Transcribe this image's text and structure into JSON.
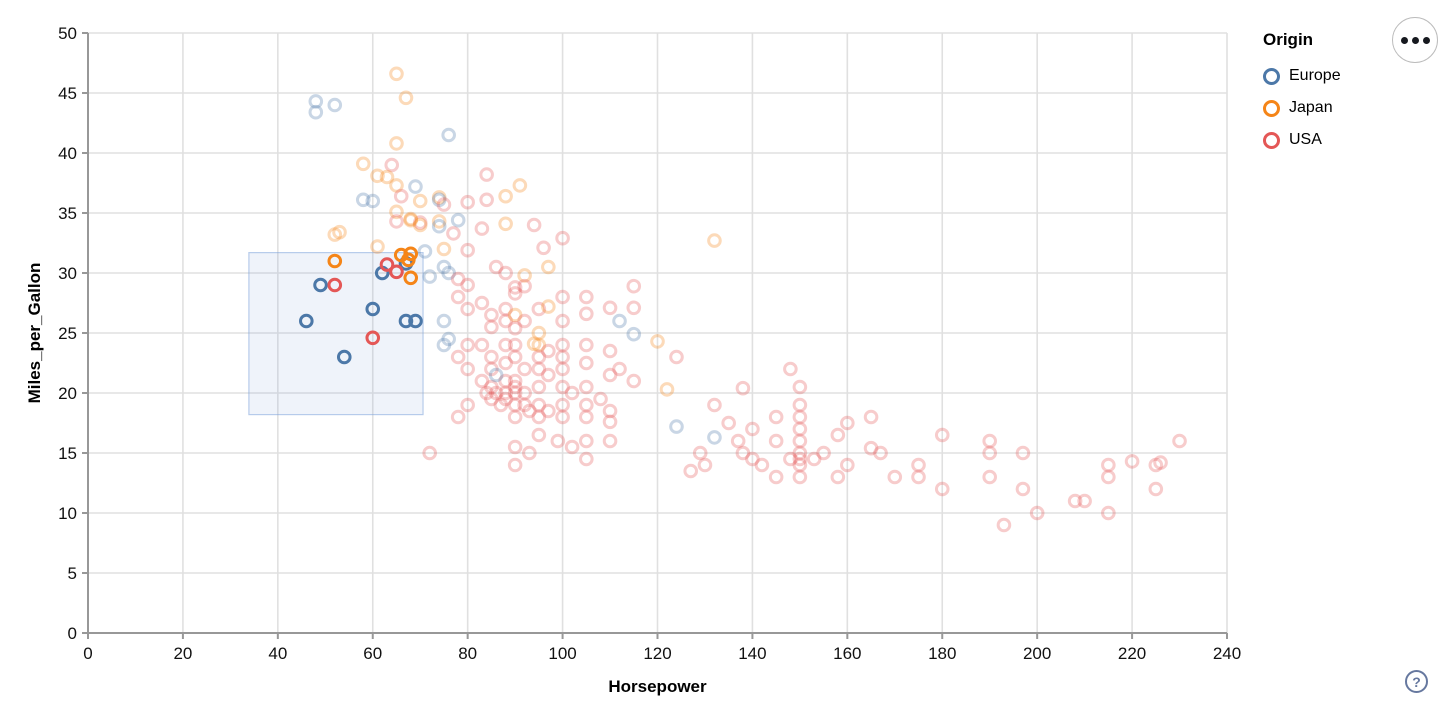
{
  "chart_data": {
    "type": "scatter",
    "title": "",
    "xlabel": "Horsepower",
    "ylabel": "Miles_per_Gallon",
    "xlim": [
      0,
      240
    ],
    "ylim": [
      0,
      50
    ],
    "xtick_step": 20,
    "ytick_step": 5,
    "grid": true,
    "legend": {
      "title": "Origin",
      "position": "top-right",
      "entries": [
        {
          "key": "E",
          "label": "Europe",
          "color": "#4c78a8"
        },
        {
          "key": "J",
          "label": "Japan",
          "color": "#f58518"
        },
        {
          "key": "U",
          "label": "USA",
          "color": "#e45756"
        }
      ]
    },
    "brush": {
      "x": [
        33.9,
        70.6
      ],
      "y": [
        18.2,
        31.7
      ],
      "fill": "rgba(130,165,220,0.13)",
      "stroke": "rgba(130,165,220,0.55)"
    },
    "point_style": {
      "radius": 5.8,
      "stroke_width": 3,
      "selected_opacity": 1,
      "faded_opacity": 0.3
    },
    "points": [
      [
        46,
        26,
        "E"
      ],
      [
        49,
        29,
        "E"
      ],
      [
        54,
        23,
        "E"
      ],
      [
        60,
        27,
        "E"
      ],
      [
        62,
        30,
        "E"
      ],
      [
        67,
        30.8,
        "E"
      ],
      [
        67,
        26,
        "E"
      ],
      [
        69,
        26,
        "E"
      ],
      [
        52,
        31,
        "J"
      ],
      [
        66,
        31.5,
        "J"
      ],
      [
        68,
        31.6,
        "J"
      ],
      [
        67.5,
        31.1,
        "J"
      ],
      [
        68,
        29.6,
        "J"
      ],
      [
        52,
        29,
        "U"
      ],
      [
        60,
        24.6,
        "U"
      ],
      [
        63,
        30.7,
        "U"
      ],
      [
        65,
        30.1,
        "U"
      ],
      [
        65,
        46.6,
        "J"
      ],
      [
        67,
        44.6,
        "J"
      ],
      [
        48,
        44.3,
        "E"
      ],
      [
        48,
        43.4,
        "E"
      ],
      [
        52,
        44,
        "E"
      ],
      [
        76,
        41.5,
        "E"
      ],
      [
        65,
        40.8,
        "J"
      ],
      [
        58,
        39.1,
        "J"
      ],
      [
        64,
        39,
        "U"
      ],
      [
        61,
        38.1,
        "J"
      ],
      [
        63,
        38,
        "J"
      ],
      [
        84,
        38.2,
        "U"
      ],
      [
        65,
        37.3,
        "J"
      ],
      [
        69,
        37.2,
        "E"
      ],
      [
        91,
        37.3,
        "J"
      ],
      [
        58,
        36.1,
        "E"
      ],
      [
        60,
        36,
        "E"
      ],
      [
        66,
        36.4,
        "U"
      ],
      [
        74,
        36.3,
        "J"
      ],
      [
        88,
        36.4,
        "J"
      ],
      [
        80,
        35.9,
        "U"
      ],
      [
        70,
        36,
        "J"
      ],
      [
        84,
        36.1,
        "U"
      ],
      [
        74,
        36.1,
        "E"
      ],
      [
        65,
        35.1,
        "J"
      ],
      [
        70,
        34.2,
        "U"
      ],
      [
        75,
        35.7,
        "U"
      ],
      [
        68,
        34.5,
        "J"
      ],
      [
        65,
        34.3,
        "U"
      ],
      [
        68,
        34.4,
        "J"
      ],
      [
        70,
        34,
        "J"
      ],
      [
        74,
        34.3,
        "J"
      ],
      [
        78,
        34.4,
        "E"
      ],
      [
        74,
        33.9,
        "E"
      ],
      [
        83,
        33.7,
        "U"
      ],
      [
        77,
        33.3,
        "U"
      ],
      [
        94,
        34,
        "U"
      ],
      [
        52,
        33.2,
        "J"
      ],
      [
        53,
        33.4,
        "J"
      ],
      [
        61,
        32.2,
        "J"
      ],
      [
        88,
        34.1,
        "J"
      ],
      [
        100,
        32.9,
        "U"
      ],
      [
        96,
        32.1,
        "U"
      ],
      [
        132,
        32.7,
        "J"
      ],
      [
        75,
        32,
        "J"
      ],
      [
        80,
        31.9,
        "U"
      ],
      [
        71,
        31.8,
        "E"
      ],
      [
        72,
        29.7,
        "E"
      ],
      [
        76,
        30,
        "E"
      ],
      [
        78,
        29.5,
        "U"
      ],
      [
        80,
        29,
        "U"
      ],
      [
        86,
        30.5,
        "U"
      ],
      [
        88,
        30,
        "U"
      ],
      [
        92,
        29.8,
        "J"
      ],
      [
        75,
        30.5,
        "E"
      ],
      [
        97,
        30.5,
        "J"
      ],
      [
        75,
        26,
        "E"
      ],
      [
        78,
        28,
        "U"
      ],
      [
        80,
        27,
        "U"
      ],
      [
        83,
        27.5,
        "U"
      ],
      [
        85,
        26.5,
        "U"
      ],
      [
        85,
        25.5,
        "U"
      ],
      [
        88,
        27,
        "U"
      ],
      [
        88,
        26,
        "U"
      ],
      [
        90,
        28.8,
        "U"
      ],
      [
        90,
        28.3,
        "U"
      ],
      [
        92,
        28.9,
        "U"
      ],
      [
        90,
        26.5,
        "J"
      ],
      [
        90,
        25.4,
        "U"
      ],
      [
        92,
        26,
        "U"
      ],
      [
        95,
        27,
        "U"
      ],
      [
        95,
        25,
        "J"
      ],
      [
        97,
        27.2,
        "J"
      ],
      [
        100,
        28,
        "U"
      ],
      [
        100,
        26,
        "U"
      ],
      [
        105,
        28,
        "U"
      ],
      [
        105,
        26.6,
        "U"
      ],
      [
        110,
        27.1,
        "U"
      ],
      [
        112,
        26,
        "E"
      ],
      [
        115,
        28.9,
        "U"
      ],
      [
        115,
        27.1,
        "U"
      ],
      [
        115,
        24.9,
        "E"
      ],
      [
        94,
        24.1,
        "J"
      ],
      [
        75,
        24,
        "E"
      ],
      [
        120,
        24.3,
        "J"
      ],
      [
        78,
        23,
        "U"
      ],
      [
        80,
        24,
        "U"
      ],
      [
        80,
        22,
        "U"
      ],
      [
        83,
        24,
        "U"
      ],
      [
        83,
        21,
        "U"
      ],
      [
        85,
        23,
        "U"
      ],
      [
        85,
        22,
        "U"
      ],
      [
        85,
        20.5,
        "U"
      ],
      [
        88,
        24,
        "U"
      ],
      [
        88,
        22.5,
        "U"
      ],
      [
        88,
        21,
        "U"
      ],
      [
        90,
        24,
        "U"
      ],
      [
        90,
        23,
        "U"
      ],
      [
        90,
        21,
        "U"
      ],
      [
        90,
        20.5,
        "U"
      ],
      [
        92,
        22,
        "U"
      ],
      [
        95,
        24,
        "J"
      ],
      [
        95,
        23,
        "U"
      ],
      [
        95,
        22,
        "U"
      ],
      [
        95,
        20.5,
        "U"
      ],
      [
        97,
        23.5,
        "U"
      ],
      [
        97,
        21.5,
        "U"
      ],
      [
        100,
        24,
        "U"
      ],
      [
        100,
        23,
        "U"
      ],
      [
        100,
        22,
        "U"
      ],
      [
        100,
        20.5,
        "U"
      ],
      [
        105,
        24,
        "U"
      ],
      [
        105,
        22.5,
        "U"
      ],
      [
        105,
        20.5,
        "U"
      ],
      [
        110,
        23.5,
        "U"
      ],
      [
        110,
        21.5,
        "U"
      ],
      [
        112,
        22,
        "U"
      ],
      [
        115,
        21,
        "U"
      ],
      [
        76,
        24.5,
        "E"
      ],
      [
        86,
        21.5,
        "E"
      ],
      [
        122,
        20.3,
        "J"
      ],
      [
        124,
        23,
        "U"
      ],
      [
        138,
        20.4,
        "U"
      ],
      [
        148,
        22,
        "U"
      ],
      [
        78,
        18,
        "U"
      ],
      [
        80,
        19,
        "U"
      ],
      [
        84,
        20,
        "U"
      ],
      [
        85,
        19.5,
        "U"
      ],
      [
        86,
        20,
        "U"
      ],
      [
        87,
        19,
        "U"
      ],
      [
        88,
        20,
        "U"
      ],
      [
        88,
        19.5,
        "U"
      ],
      [
        90,
        20,
        "U"
      ],
      [
        90,
        19,
        "U"
      ],
      [
        90,
        18,
        "U"
      ],
      [
        92,
        20,
        "U"
      ],
      [
        92,
        19,
        "U"
      ],
      [
        93,
        18.5,
        "U"
      ],
      [
        95,
        19,
        "U"
      ],
      [
        95,
        18,
        "U"
      ],
      [
        97,
        18.5,
        "U"
      ],
      [
        100,
        19,
        "U"
      ],
      [
        100,
        18,
        "U"
      ],
      [
        102,
        20,
        "U"
      ],
      [
        105,
        19,
        "U"
      ],
      [
        105,
        18,
        "U"
      ],
      [
        108,
        19.5,
        "U"
      ],
      [
        110,
        18.5,
        "U"
      ],
      [
        110,
        17.6,
        "U"
      ],
      [
        72,
        15,
        "U"
      ],
      [
        90,
        15.5,
        "U"
      ],
      [
        93,
        15,
        "U"
      ],
      [
        95,
        16.5,
        "U"
      ],
      [
        99,
        16,
        "U"
      ],
      [
        102,
        15.5,
        "U"
      ],
      [
        105,
        16,
        "U"
      ],
      [
        105,
        14.5,
        "U"
      ],
      [
        90,
        14,
        "U"
      ],
      [
        110,
        16,
        "U"
      ],
      [
        124,
        17.2,
        "E"
      ],
      [
        132,
        16.3,
        "E"
      ],
      [
        127,
        13.5,
        "U"
      ],
      [
        129,
        15,
        "U"
      ],
      [
        130,
        14,
        "U"
      ],
      [
        132,
        19,
        "U"
      ],
      [
        135,
        17.5,
        "U"
      ],
      [
        137,
        16,
        "U"
      ],
      [
        138,
        15,
        "U"
      ],
      [
        140,
        17,
        "U"
      ],
      [
        140,
        14.5,
        "U"
      ],
      [
        142,
        14,
        "U"
      ],
      [
        145,
        18,
        "U"
      ],
      [
        145,
        16,
        "U"
      ],
      [
        145,
        13,
        "U"
      ],
      [
        148,
        14.5,
        "U"
      ],
      [
        150,
        20.5,
        "U"
      ],
      [
        150,
        19,
        "U"
      ],
      [
        150,
        18,
        "U"
      ],
      [
        150,
        17,
        "U"
      ],
      [
        150,
        16,
        "U"
      ],
      [
        150,
        15,
        "U"
      ],
      [
        150,
        14.5,
        "U"
      ],
      [
        150,
        14,
        "U"
      ],
      [
        150,
        13,
        "U"
      ],
      [
        153,
        14.5,
        "U"
      ],
      [
        155,
        15,
        "U"
      ],
      [
        158,
        16.5,
        "U"
      ],
      [
        158,
        13,
        "U"
      ],
      [
        160,
        17.5,
        "U"
      ],
      [
        160,
        14,
        "U"
      ],
      [
        165,
        15.4,
        "U"
      ],
      [
        165,
        18,
        "U"
      ],
      [
        167,
        15,
        "U"
      ],
      [
        170,
        13,
        "U"
      ],
      [
        175,
        14,
        "U"
      ],
      [
        175,
        13,
        "U"
      ],
      [
        180,
        16.5,
        "U"
      ],
      [
        180,
        12,
        "U"
      ],
      [
        190,
        16,
        "U"
      ],
      [
        190,
        15,
        "U"
      ],
      [
        190,
        13,
        "U"
      ],
      [
        197,
        15,
        "U"
      ],
      [
        197,
        12,
        "U"
      ],
      [
        193,
        9,
        "U"
      ],
      [
        200,
        10,
        "U"
      ],
      [
        208,
        11,
        "U"
      ],
      [
        210,
        11,
        "U"
      ],
      [
        215,
        10,
        "U"
      ],
      [
        215,
        14,
        "U"
      ],
      [
        215,
        13,
        "U"
      ],
      [
        220,
        14.3,
        "U"
      ],
      [
        225,
        14,
        "U"
      ],
      [
        226,
        14.2,
        "U"
      ],
      [
        225,
        12,
        "U"
      ],
      [
        230,
        16,
        "U"
      ]
    ]
  },
  "ui": {
    "menu_button": {
      "icon": "ellipsis-icon"
    },
    "help_button": {
      "label": "?"
    }
  }
}
